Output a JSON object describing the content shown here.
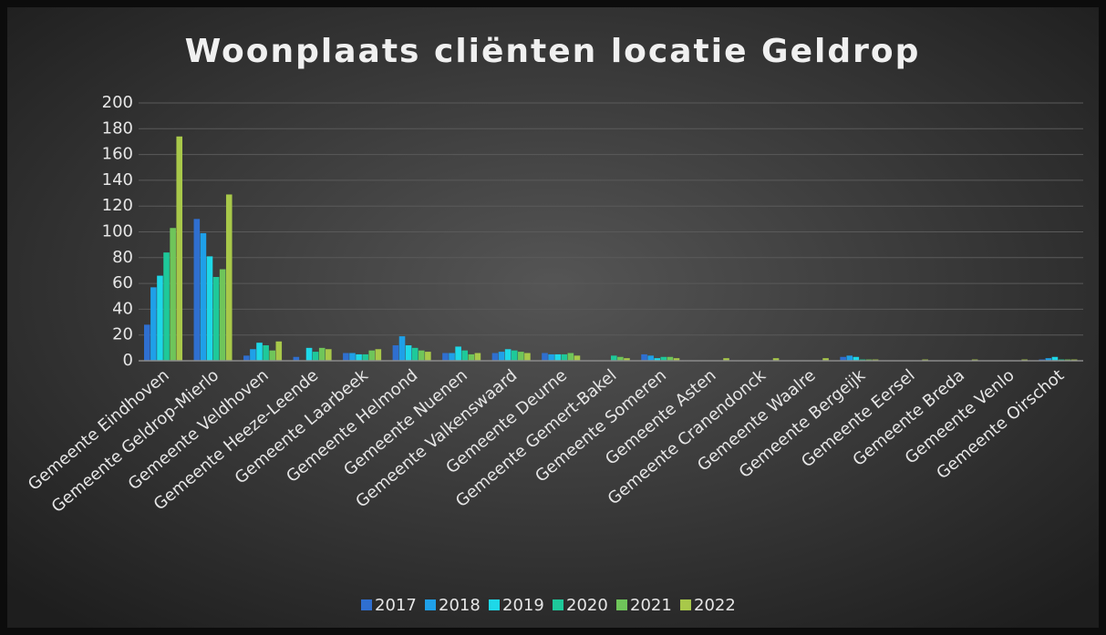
{
  "chart_data": {
    "type": "bar",
    "title": "Woonplaats cliënten locatie Geldrop",
    "categories": [
      "Gemeente Eindhoven",
      "Gemeente Geldrop-Mierlo",
      "Gemeente Veldhoven",
      "Gemeente Heeze-Leende",
      "Gemeente Laarbeek",
      "Gemeente Helmond",
      "Gemeente Nuenen",
      "Gemeente Valkenswaard",
      "Gemeente Deurne",
      "Gemeente Gemert-Bakel",
      "Gemeente Someren",
      "Gemeente Asten",
      "Gemeente Cranendonck",
      "Gemeente Waalre",
      "Gemeente Bergeijk",
      "Gemeente Eersel",
      "Gemeente Breda",
      "Gemeente Venlo",
      "Gemeente Oirschot"
    ],
    "series": [
      {
        "name": "2017",
        "color": "#2f6fd0",
        "values": [
          28,
          110,
          4,
          3,
          6,
          12,
          6,
          6,
          6,
          0,
          5,
          0,
          0,
          0,
          3,
          0,
          0,
          0,
          1
        ]
      },
      {
        "name": "2018",
        "color": "#1fa0e8",
        "values": [
          57,
          99,
          9,
          0,
          6,
          19,
          6,
          7,
          5,
          0,
          4,
          0,
          0,
          0,
          4,
          0,
          0,
          0,
          2
        ]
      },
      {
        "name": "2019",
        "color": "#1ed8e8",
        "values": [
          66,
          81,
          14,
          10,
          5,
          12,
          11,
          9,
          5,
          0,
          2,
          0,
          0,
          0,
          3,
          0,
          0,
          0,
          3
        ]
      },
      {
        "name": "2020",
        "color": "#1ec99a",
        "values": [
          84,
          65,
          12,
          7,
          5,
          10,
          8,
          8,
          5,
          4,
          3,
          0,
          0,
          0,
          1,
          0,
          0,
          0,
          1
        ]
      },
      {
        "name": "2021",
        "color": "#6fc55a",
        "values": [
          103,
          71,
          8,
          10,
          8,
          8,
          5,
          7,
          6,
          3,
          3,
          0,
          0,
          0,
          1,
          0,
          0,
          0,
          1
        ]
      },
      {
        "name": "2022",
        "color": "#a8c84a",
        "values": [
          174,
          129,
          15,
          9,
          9,
          7,
          6,
          6,
          4,
          2,
          2,
          2,
          2,
          2,
          1,
          1,
          1,
          1,
          1
        ]
      }
    ],
    "ylim": [
      0,
      200
    ],
    "yticks": [
      0,
      20,
      40,
      60,
      80,
      100,
      120,
      140,
      160,
      180,
      200
    ],
    "grid": true,
    "legend": "bottom"
  }
}
